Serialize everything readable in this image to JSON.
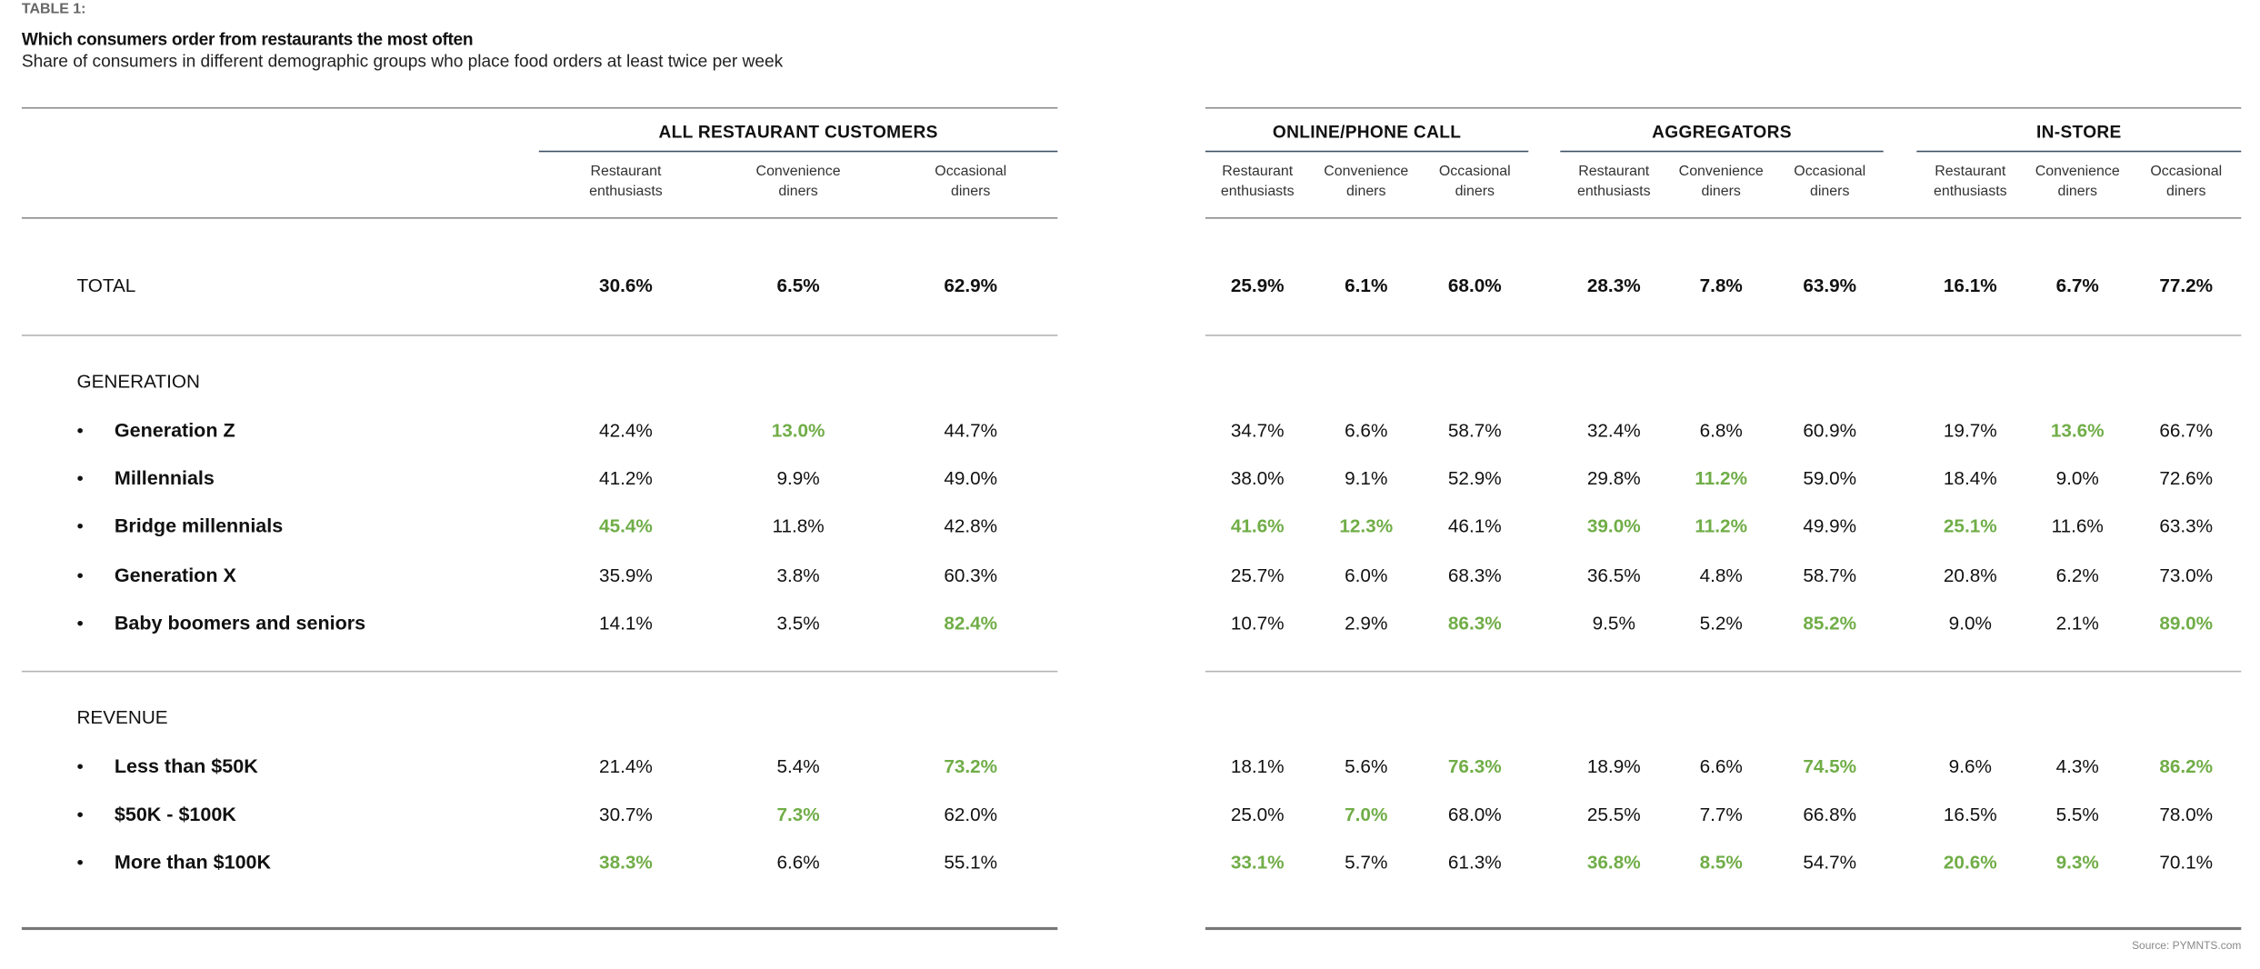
{
  "header": {
    "tag": "TABLE 1:",
    "title": "Which consumers order from restaurants the most often",
    "subtitle": "Share of consumers in different demographic groups who place food orders at least twice per week"
  },
  "groups": [
    "ALL RESTAURANT CUSTOMERS",
    "ONLINE/PHONE CALL",
    "AGGREGATORS",
    "IN-STORE"
  ],
  "subheaders": [
    [
      "Restaurant",
      "enthusiasts"
    ],
    [
      "Convenience",
      "diners"
    ],
    [
      "Occasional",
      "diners"
    ]
  ],
  "colors": {
    "highlight": "#70ad47",
    "text": "#111111"
  },
  "bullet": "•",
  "total": {
    "label": "TOTAL",
    "values": [
      "30.6%",
      "6.5%",
      "62.9%",
      "25.9%",
      "6.1%",
      "68.0%",
      "28.3%",
      "7.8%",
      "63.9%",
      "16.1%",
      "6.7%",
      "77.2%"
    ]
  },
  "sections": [
    {
      "title": "GENERATION",
      "rows": [
        {
          "label": "Generation Z",
          "values": [
            "42.4%",
            "13.0%",
            "44.7%",
            "34.7%",
            "6.6%",
            "58.7%",
            "32.4%",
            "6.8%",
            "60.9%",
            "19.7%",
            "13.6%",
            "66.7%"
          ],
          "highlight": [
            1,
            10
          ]
        },
        {
          "label": "Millennials",
          "values": [
            "41.2%",
            "9.9%",
            "49.0%",
            "38.0%",
            "9.1%",
            "52.9%",
            "29.8%",
            "11.2%",
            "59.0%",
            "18.4%",
            "9.0%",
            "72.6%"
          ],
          "highlight": [
            7
          ]
        },
        {
          "label": "Bridge millennials",
          "values": [
            "45.4%",
            "11.8%",
            "42.8%",
            "41.6%",
            "12.3%",
            "46.1%",
            "39.0%",
            "11.2%",
            "49.9%",
            "25.1%",
            "11.6%",
            "63.3%"
          ],
          "highlight": [
            0,
            3,
            4,
            6,
            7,
            9
          ]
        },
        {
          "label": "Generation X",
          "values": [
            "35.9%",
            "3.8%",
            "60.3%",
            "25.7%",
            "6.0%",
            "68.3%",
            "36.5%",
            "4.8%",
            "58.7%",
            "20.8%",
            "6.2%",
            "73.0%"
          ],
          "highlight": []
        },
        {
          "label": "Baby boomers and seniors",
          "values": [
            "14.1%",
            "3.5%",
            "82.4%",
            "10.7%",
            "2.9%",
            "86.3%",
            "9.5%",
            "5.2%",
            "85.2%",
            "9.0%",
            "2.1%",
            "89.0%"
          ],
          "highlight": [
            2,
            5,
            8,
            11
          ]
        }
      ]
    },
    {
      "title": "REVENUE",
      "rows": [
        {
          "label": "Less than $50K",
          "values": [
            "21.4%",
            "5.4%",
            "73.2%",
            "18.1%",
            "5.6%",
            "76.3%",
            "18.9%",
            "6.6%",
            "74.5%",
            "9.6%",
            "4.3%",
            "86.2%"
          ],
          "highlight": [
            2,
            5,
            8,
            11
          ]
        },
        {
          "label": "$50K - $100K",
          "values": [
            "30.7%",
            "7.3%",
            "62.0%",
            "25.0%",
            "7.0%",
            "68.0%",
            "25.5%",
            "7.7%",
            "66.8%",
            "16.5%",
            "5.5%",
            "78.0%"
          ],
          "highlight": [
            1,
            4
          ]
        },
        {
          "label": "More than $100K",
          "values": [
            "38.3%",
            "6.6%",
            "55.1%",
            "33.1%",
            "5.7%",
            "61.3%",
            "36.8%",
            "8.5%",
            "54.7%",
            "20.6%",
            "9.3%",
            "70.1%"
          ],
          "highlight": [
            0,
            3,
            6,
            7,
            9,
            10
          ]
        }
      ]
    }
  ],
  "source": "Source: PYMNTS.com"
}
